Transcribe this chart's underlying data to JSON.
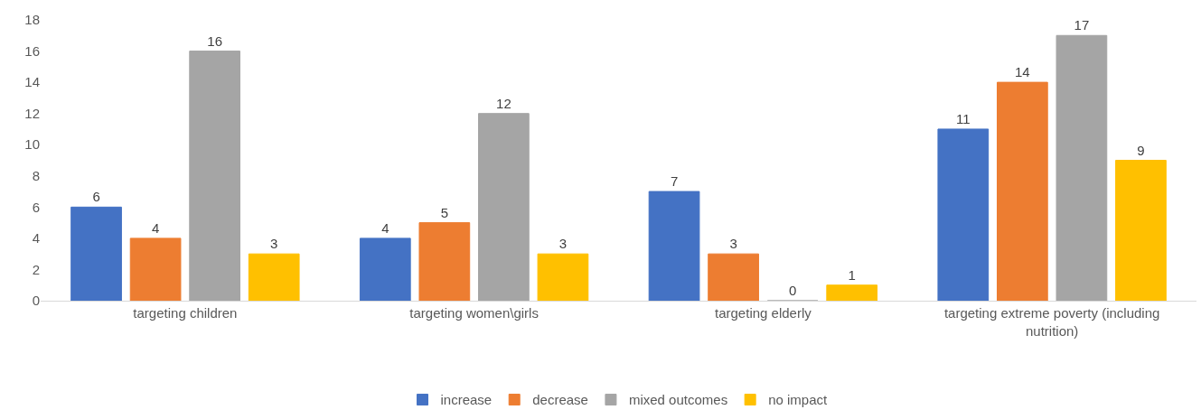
{
  "chart_data": {
    "type": "bar",
    "categories": [
      "targeting children",
      "targeting women\\girls",
      "targeting elderly",
      "targeting extreme poverty (including nutrition)"
    ],
    "series": [
      {
        "name": "increase",
        "color": "#4472c4",
        "values": [
          6,
          4,
          7,
          11
        ]
      },
      {
        "name": "decrease",
        "color": "#ed7d31",
        "values": [
          4,
          5,
          3,
          14
        ]
      },
      {
        "name": "mixed outcomes",
        "color": "#a5a5a5",
        "values": [
          16,
          12,
          0,
          17
        ]
      },
      {
        "name": "no impact",
        "color": "#ffc000",
        "values": [
          3,
          3,
          1,
          9
        ]
      }
    ],
    "ylim": [
      0,
      18
    ],
    "yticks": [
      0,
      2,
      4,
      6,
      8,
      10,
      12,
      14,
      16,
      18
    ],
    "grid": false,
    "legend": "bottom",
    "data_labels": true
  }
}
